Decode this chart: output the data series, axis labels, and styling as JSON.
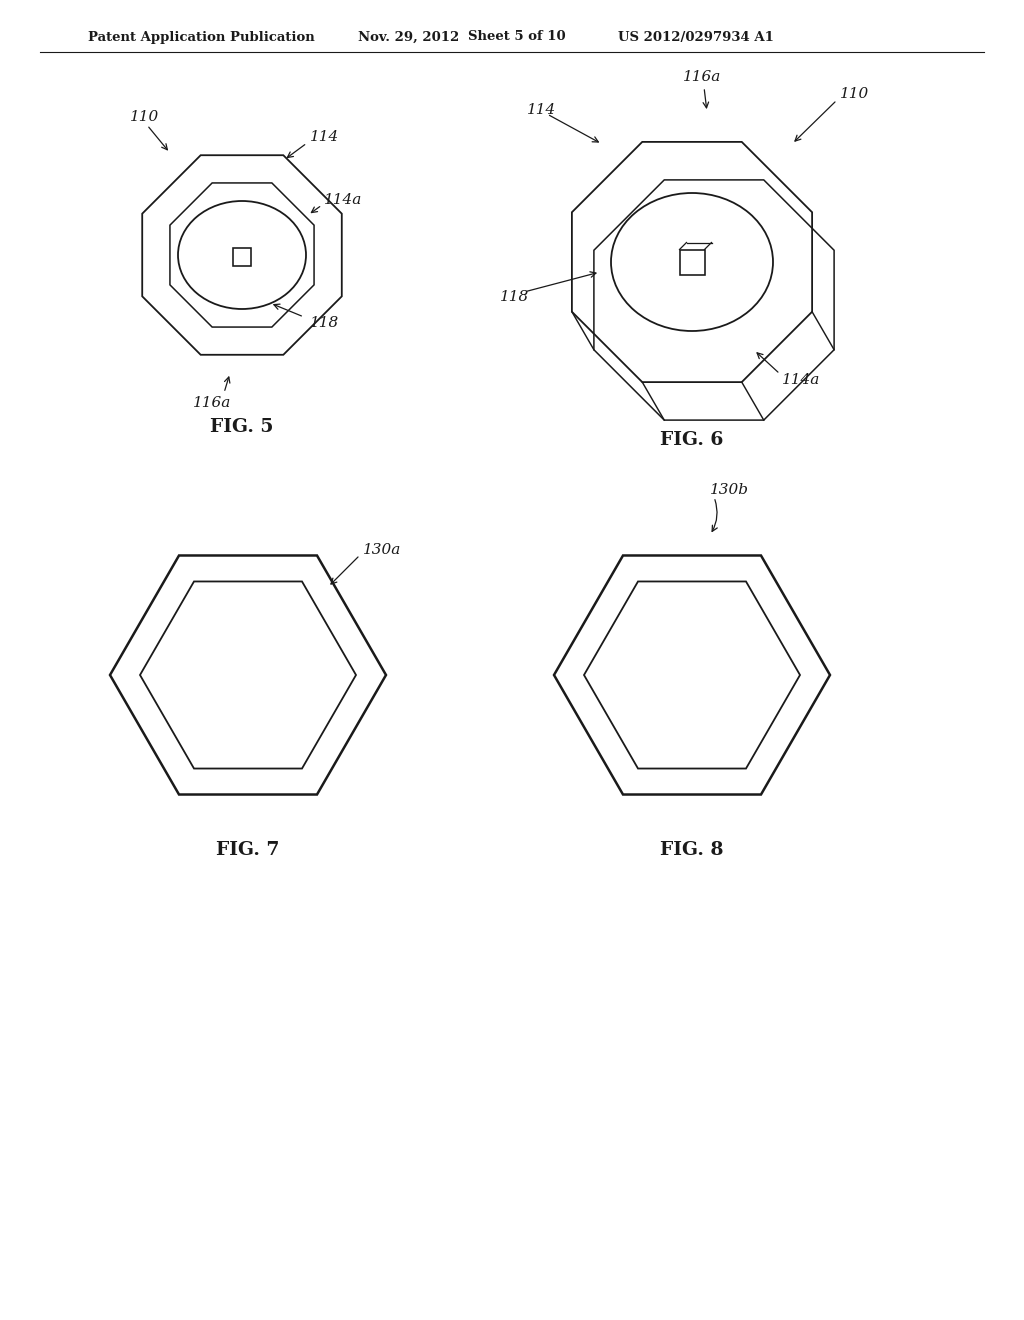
{
  "background_color": "#ffffff",
  "header_text": "Patent Application Publication",
  "header_date": "Nov. 29, 2012",
  "header_sheet": "Sheet 5 of 10",
  "header_patent": "US 2012/0297934 A1",
  "fig5_label": "FIG. 5",
  "fig6_label": "FIG. 6",
  "fig7_label": "FIG. 7",
  "fig8_label": "FIG. 8",
  "line_color": "#1a1a1a",
  "line_width": 1.3
}
